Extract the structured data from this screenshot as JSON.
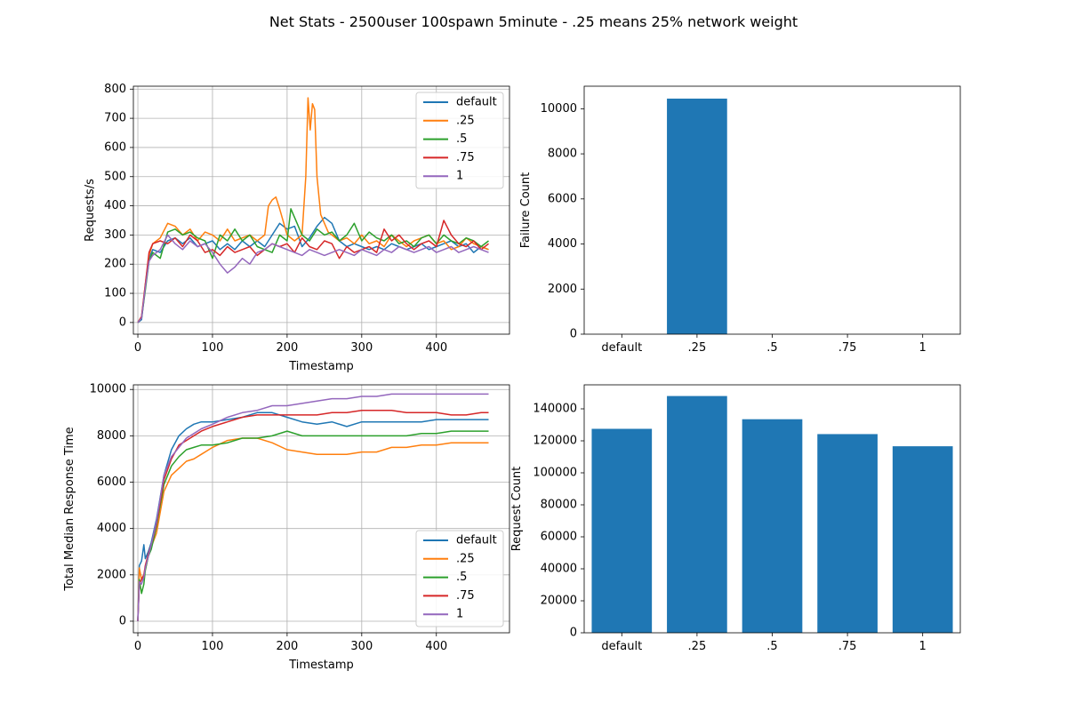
{
  "figure": {
    "title": "Net Stats - 2500user 100spawn 5minute - .25 means 25% network weight"
  },
  "colors": {
    "default": "#1f77b4",
    ".25": "#ff7f0e",
    ".5": "#2ca02c",
    ".75": "#d62728",
    "1": "#9467bd",
    "bar": "#1f77b4",
    "grid": "#b0b0b0"
  },
  "chart_data": [
    {
      "type": "line",
      "xlabel": "Timestamp",
      "ylabel": "Requests/s",
      "xlim": [
        -6,
        498
      ],
      "ylim": [
        -40,
        810
      ],
      "xticks": [
        0,
        100,
        200,
        300,
        400
      ],
      "yticks": [
        0,
        100,
        200,
        300,
        400,
        500,
        600,
        700,
        800
      ],
      "grid": true,
      "legend": "top-right",
      "series": [
        {
          "name": "default",
          "x": [
            0,
            5,
            10,
            15,
            20,
            30,
            40,
            50,
            60,
            70,
            80,
            90,
            100,
            110,
            120,
            130,
            140,
            150,
            160,
            170,
            180,
            190,
            200,
            210,
            220,
            230,
            240,
            250,
            260,
            270,
            280,
            290,
            300,
            310,
            320,
            330,
            340,
            350,
            360,
            370,
            380,
            390,
            400,
            410,
            420,
            430,
            440,
            450,
            460,
            470
          ],
          "y": [
            0,
            10,
            120,
            220,
            250,
            240,
            280,
            290,
            270,
            290,
            260,
            270,
            280,
            250,
            270,
            250,
            280,
            260,
            280,
            260,
            300,
            340,
            320,
            330,
            260,
            290,
            330,
            360,
            340,
            280,
            260,
            270,
            260,
            250,
            260,
            250,
            270,
            260,
            250,
            260,
            270,
            250,
            260,
            270,
            280,
            260,
            270,
            240,
            260,
            250
          ]
        },
        {
          "name": ".25",
          "x": [
            0,
            5,
            10,
            15,
            20,
            30,
            40,
            50,
            60,
            70,
            80,
            90,
            100,
            110,
            120,
            130,
            140,
            150,
            160,
            170,
            175,
            180,
            185,
            190,
            200,
            210,
            220,
            225,
            228,
            231,
            234,
            237,
            240,
            245,
            250,
            255,
            260,
            270,
            280,
            290,
            300,
            310,
            320,
            330,
            340,
            350,
            360,
            370,
            380,
            390,
            400,
            410,
            420,
            430,
            440,
            450,
            460,
            470
          ],
          "y": [
            0,
            20,
            130,
            230,
            270,
            290,
            340,
            330,
            300,
            320,
            280,
            310,
            300,
            280,
            320,
            280,
            290,
            300,
            280,
            300,
            400,
            420,
            430,
            390,
            300,
            280,
            300,
            500,
            770,
            660,
            750,
            730,
            500,
            370,
            340,
            310,
            300,
            280,
            290,
            270,
            300,
            270,
            280,
            260,
            300,
            280,
            260,
            280,
            290,
            300,
            270,
            280,
            250,
            260,
            290,
            270,
            260,
            250
          ]
        },
        {
          "name": ".5",
          "x": [
            0,
            5,
            10,
            15,
            20,
            30,
            40,
            50,
            60,
            70,
            80,
            90,
            100,
            110,
            120,
            130,
            140,
            150,
            160,
            170,
            180,
            190,
            200,
            205,
            210,
            220,
            230,
            240,
            250,
            260,
            270,
            280,
            290,
            300,
            310,
            320,
            330,
            340,
            350,
            360,
            370,
            380,
            390,
            400,
            410,
            420,
            430,
            440,
            450,
            460,
            470
          ],
          "y": [
            0,
            15,
            110,
            210,
            240,
            220,
            310,
            320,
            300,
            310,
            290,
            280,
            220,
            300,
            280,
            320,
            280,
            300,
            260,
            250,
            240,
            300,
            280,
            390,
            360,
            300,
            280,
            320,
            300,
            310,
            280,
            300,
            340,
            280,
            310,
            290,
            280,
            300,
            270,
            280,
            260,
            290,
            300,
            270,
            300,
            280,
            270,
            290,
            280,
            260,
            280
          ]
        },
        {
          "name": ".75",
          "x": [
            0,
            5,
            10,
            15,
            20,
            30,
            40,
            50,
            60,
            70,
            80,
            90,
            100,
            110,
            120,
            130,
            140,
            150,
            160,
            170,
            180,
            190,
            200,
            210,
            220,
            230,
            240,
            250,
            260,
            270,
            280,
            290,
            300,
            310,
            320,
            330,
            340,
            350,
            360,
            370,
            380,
            390,
            400,
            410,
            420,
            430,
            440,
            450,
            460,
            470
          ],
          "y": [
            0,
            20,
            130,
            240,
            270,
            280,
            270,
            290,
            260,
            300,
            280,
            240,
            250,
            230,
            260,
            240,
            250,
            260,
            230,
            250,
            270,
            260,
            270,
            240,
            290,
            260,
            250,
            280,
            270,
            220,
            260,
            240,
            250,
            260,
            240,
            320,
            280,
            300,
            270,
            250,
            270,
            280,
            260,
            350,
            300,
            270,
            260,
            280,
            250,
            270
          ]
        },
        {
          "name": "1",
          "x": [
            0,
            5,
            10,
            15,
            20,
            30,
            40,
            50,
            60,
            70,
            80,
            90,
            100,
            110,
            120,
            130,
            140,
            150,
            160,
            170,
            180,
            190,
            200,
            210,
            220,
            230,
            240,
            250,
            260,
            270,
            280,
            290,
            300,
            310,
            320,
            330,
            340,
            350,
            360,
            370,
            380,
            390,
            400,
            410,
            420,
            430,
            440,
            450,
            460,
            470
          ],
          "y": [
            0,
            15,
            120,
            210,
            230,
            250,
            300,
            270,
            250,
            280,
            260,
            270,
            240,
            200,
            170,
            190,
            220,
            200,
            240,
            250,
            270,
            260,
            250,
            240,
            230,
            250,
            240,
            230,
            240,
            250,
            240,
            230,
            250,
            240,
            230,
            250,
            240,
            260,
            250,
            240,
            250,
            260,
            240,
            250,
            260,
            240,
            250,
            260,
            250,
            240
          ]
        }
      ]
    },
    {
      "type": "bar",
      "ylabel": "Failure Count",
      "categories": [
        "default",
        ".25",
        ".5",
        ".75",
        "1"
      ],
      "values": [
        0,
        10450,
        0,
        0,
        0
      ],
      "ylim": [
        0,
        11000
      ],
      "yticks": [
        0,
        2000,
        4000,
        6000,
        8000,
        10000
      ],
      "grid": false
    },
    {
      "type": "line",
      "xlabel": "Timestamp",
      "ylabel": "Total Median Response Time",
      "xlim": [
        -6,
        498
      ],
      "ylim": [
        -500,
        10200
      ],
      "xticks": [
        0,
        100,
        200,
        300,
        400
      ],
      "yticks": [
        0,
        2000,
        4000,
        6000,
        8000,
        10000
      ],
      "grid": true,
      "legend": "bottom-right",
      "series": [
        {
          "name": "default",
          "x": [
            0,
            2,
            5,
            8,
            10,
            14,
            18,
            25,
            35,
            45,
            55,
            65,
            75,
            85,
            100,
            120,
            140,
            160,
            180,
            200,
            220,
            240,
            260,
            280,
            300,
            320,
            340,
            360,
            380,
            400,
            420,
            440,
            460,
            470
          ],
          "y": [
            0,
            2400,
            2600,
            3300,
            2700,
            3000,
            3400,
            4400,
            6300,
            7400,
            8000,
            8300,
            8500,
            8600,
            8600,
            8700,
            8800,
            9000,
            9000,
            8800,
            8600,
            8500,
            8600,
            8400,
            8600,
            8600,
            8600,
            8600,
            8600,
            8700,
            8700,
            8700,
            8700,
            8700
          ]
        },
        {
          "name": ".25",
          "x": [
            0,
            2,
            5,
            8,
            10,
            14,
            18,
            25,
            35,
            45,
            55,
            65,
            75,
            85,
            100,
            120,
            140,
            160,
            180,
            200,
            220,
            240,
            260,
            280,
            300,
            320,
            340,
            360,
            380,
            400,
            420,
            440,
            460,
            470
          ],
          "y": [
            0,
            2300,
            1800,
            2000,
            2200,
            2800,
            3200,
            3800,
            5600,
            6300,
            6600,
            6900,
            7000,
            7200,
            7500,
            7800,
            7900,
            7900,
            7700,
            7400,
            7300,
            7200,
            7200,
            7200,
            7300,
            7300,
            7500,
            7500,
            7600,
            7600,
            7700,
            7700,
            7700,
            7700
          ]
        },
        {
          "name": ".5",
          "x": [
            0,
            2,
            5,
            8,
            10,
            14,
            18,
            25,
            35,
            45,
            55,
            65,
            75,
            85,
            100,
            120,
            140,
            160,
            180,
            200,
            220,
            240,
            260,
            280,
            300,
            320,
            340,
            360,
            380,
            400,
            420,
            440,
            460,
            470
          ],
          "y": [
            0,
            1800,
            1200,
            1600,
            2200,
            2800,
            3100,
            4100,
            5900,
            6700,
            7100,
            7400,
            7500,
            7600,
            7600,
            7700,
            7900,
            7900,
            8000,
            8200,
            8000,
            8000,
            8000,
            8000,
            8000,
            8000,
            8000,
            8000,
            8100,
            8100,
            8200,
            8200,
            8200,
            8200
          ]
        },
        {
          "name": ".75",
          "x": [
            0,
            2,
            5,
            8,
            10,
            14,
            18,
            25,
            35,
            45,
            55,
            65,
            75,
            85,
            100,
            120,
            140,
            160,
            180,
            200,
            220,
            240,
            260,
            280,
            300,
            320,
            340,
            360,
            380,
            400,
            420,
            440,
            460,
            470
          ],
          "y": [
            0,
            1600,
            1800,
            2000,
            2400,
            2900,
            3300,
            4200,
            6100,
            7000,
            7600,
            7800,
            8000,
            8200,
            8400,
            8600,
            8800,
            8900,
            8900,
            8900,
            8900,
            8900,
            9000,
            9000,
            9100,
            9100,
            9100,
            9000,
            9000,
            9000,
            8900,
            8900,
            9000,
            9000
          ]
        },
        {
          "name": "1",
          "x": [
            0,
            2,
            5,
            8,
            10,
            14,
            18,
            25,
            35,
            45,
            55,
            65,
            75,
            85,
            100,
            120,
            140,
            160,
            180,
            200,
            220,
            240,
            260,
            280,
            300,
            320,
            340,
            360,
            380,
            400,
            420,
            440,
            460,
            470
          ],
          "y": [
            0,
            1700,
            1600,
            1900,
            2300,
            2800,
            3300,
            4300,
            6300,
            7100,
            7500,
            7900,
            8100,
            8300,
            8500,
            8800,
            9000,
            9100,
            9300,
            9300,
            9400,
            9500,
            9600,
            9600,
            9700,
            9700,
            9800,
            9800,
            9800,
            9800,
            9800,
            9800,
            9800,
            9800
          ]
        }
      ]
    },
    {
      "type": "bar",
      "ylabel": "Request Count",
      "categories": [
        "default",
        ".25",
        ".5",
        ".75",
        "1"
      ],
      "values": [
        127500,
        148000,
        133500,
        124200,
        116600
      ],
      "ylim": [
        0,
        155000
      ],
      "yticks": [
        0,
        20000,
        40000,
        60000,
        80000,
        100000,
        120000,
        140000
      ],
      "grid": false
    }
  ]
}
